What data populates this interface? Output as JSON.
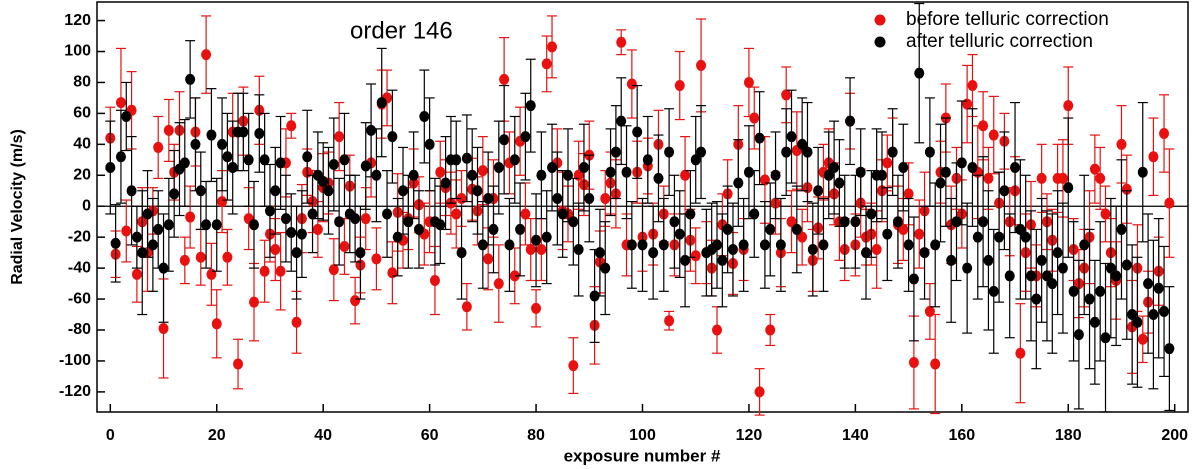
{
  "chart_data": {
    "type": "scatter",
    "annotation": "order 146",
    "x_label": "exposure number #",
    "y_label": "Radial Velocity (m/s)",
    "xlim": [
      -2.5,
      202.5
    ],
    "ylim": [
      -133,
      132
    ],
    "xticks": [
      0,
      20,
      40,
      60,
      80,
      100,
      120,
      140,
      160,
      180,
      200
    ],
    "yticks": [
      -120,
      -100,
      -80,
      -60,
      -40,
      -20,
      0,
      20,
      40,
      60,
      80,
      100,
      120
    ],
    "legend": "top-right",
    "x": [
      0,
      1,
      2,
      3,
      4,
      5,
      6,
      7,
      8,
      9,
      10,
      11,
      12,
      13,
      14,
      15,
      16,
      17,
      18,
      19,
      20,
      21,
      22,
      23,
      24,
      25,
      26,
      27,
      28,
      29,
      30,
      31,
      32,
      33,
      34,
      35,
      36,
      37,
      38,
      39,
      40,
      41,
      42,
      43,
      44,
      45,
      46,
      47,
      48,
      49,
      50,
      51,
      52,
      53,
      54,
      55,
      56,
      57,
      58,
      59,
      60,
      61,
      62,
      63,
      64,
      65,
      66,
      67,
      68,
      69,
      70,
      71,
      72,
      73,
      74,
      75,
      76,
      77,
      78,
      79,
      80,
      81,
      82,
      83,
      84,
      85,
      86,
      87,
      88,
      89,
      90,
      91,
      92,
      93,
      94,
      95,
      96,
      97,
      98,
      99,
      100,
      101,
      102,
      103,
      104,
      105,
      106,
      107,
      108,
      109,
      110,
      111,
      112,
      113,
      114,
      115,
      116,
      117,
      118,
      119,
      120,
      121,
      122,
      123,
      124,
      125,
      126,
      127,
      128,
      129,
      130,
      131,
      132,
      133,
      134,
      135,
      136,
      137,
      138,
      139,
      140,
      141,
      142,
      143,
      144,
      145,
      146,
      147,
      148,
      149,
      150,
      151,
      152,
      153,
      154,
      155,
      156,
      157,
      158,
      159,
      160,
      161,
      162,
      163,
      164,
      165,
      166,
      167,
      168,
      169,
      170,
      171,
      172,
      173,
      174,
      175,
      176,
      177,
      178,
      179,
      180,
      181,
      182,
      183,
      184,
      185,
      186,
      187,
      188,
      189,
      190,
      191,
      192,
      193,
      194,
      195,
      196,
      197,
      198,
      199
    ],
    "series": [
      {
        "name": "before telluric correction",
        "color": "#e8110f",
        "values": [
          44,
          -31,
          67,
          -16,
          62,
          -44,
          -10,
          -30,
          -3,
          38,
          -79,
          49,
          22,
          49,
          -35,
          -7,
          48,
          -33,
          98,
          -44,
          -76,
          3,
          -33,
          48,
          -102,
          55,
          -8,
          -62,
          62,
          -42,
          -18,
          -28,
          -42,
          28,
          52,
          -75,
          -8,
          22,
          3,
          -15,
          12,
          15,
          -41,
          45,
          -26,
          13,
          -61,
          -38,
          -8,
          28,
          -34,
          66,
          70,
          -43,
          -4,
          -22,
          -8,
          15,
          1,
          -18,
          -10,
          -48,
          22,
          12,
          2,
          -5,
          5,
          -65,
          11,
          -3,
          23,
          -34,
          5,
          -50,
          82,
          28,
          -45,
          42,
          -5,
          -28,
          -66,
          -28,
          92,
          103,
          28,
          -3,
          -5,
          -103,
          20,
          14,
          33,
          -77,
          -36,
          5,
          15,
          8,
          106,
          -25,
          79,
          22,
          -20,
          26,
          -18,
          40,
          -5,
          -74,
          -25,
          78,
          20,
          -22,
          -32,
          91,
          -30,
          -40,
          -80,
          -12,
          8,
          -37,
          40,
          -28,
          80,
          57,
          -120,
          17,
          -80,
          2,
          -30,
          72,
          -10,
          36,
          -20,
          12,
          -35,
          -14,
          22,
          28,
          8,
          -10,
          -28,
          55,
          -25,
          2,
          -20,
          -18,
          -28,
          10,
          28,
          35,
          -12,
          -15,
          8,
          -101,
          -18,
          -3,
          -68,
          -102,
          22,
          57,
          -12,
          18,
          -5,
          66,
          78,
          22,
          52,
          18,
          46,
          2,
          42,
          -10,
          10,
          -95,
          -30,
          -12,
          -45,
          18,
          -10,
          -22,
          18,
          18,
          65,
          -28,
          -50,
          -40,
          -20,
          24,
          18,
          -5,
          -30,
          -48,
          40,
          11,
          -78,
          -40,
          -86,
          -62,
          32,
          -42,
          47,
          2
        ],
        "errors": [
          20,
          15,
          35,
          20,
          25,
          18,
          22,
          25,
          15,
          20,
          32,
          20,
          18,
          25,
          15,
          20,
          22,
          18,
          25,
          20,
          22,
          20,
          18,
          25,
          16,
          22,
          20,
          25,
          22,
          20,
          18,
          20,
          25,
          22,
          8,
          20,
          22,
          15,
          20,
          18,
          22,
          20,
          20,
          22,
          18,
          20,
          15,
          18,
          20,
          22,
          20,
          22,
          18,
          20,
          25,
          18,
          20,
          22,
          18,
          20,
          20,
          22,
          20,
          18,
          20,
          22,
          18,
          15,
          20,
          22,
          22,
          20,
          25,
          25,
          27,
          20,
          18,
          22,
          20,
          20,
          12,
          20,
          18,
          20,
          22,
          25,
          18,
          18,
          22,
          20,
          22,
          25,
          20,
          18,
          20,
          22,
          8,
          20,
          22,
          20,
          22,
          18,
          20,
          22,
          18,
          6,
          20,
          22,
          25,
          20,
          18,
          30,
          20,
          18,
          15,
          20,
          22,
          20,
          25,
          20,
          22,
          20,
          15,
          28,
          10,
          20,
          22,
          18,
          20,
          25,
          18,
          22,
          20,
          20,
          18,
          22,
          20,
          25,
          20,
          18,
          20,
          22,
          18,
          20,
          25,
          20,
          18,
          22,
          25,
          20,
          20,
          30,
          22,
          25,
          18,
          32,
          20,
          22,
          25,
          20,
          22,
          25,
          20,
          30,
          22,
          20,
          25,
          20,
          18,
          22,
          22,
          32,
          25,
          28,
          20,
          22,
          18,
          20,
          22,
          25,
          25,
          20,
          22,
          25,
          30,
          22,
          20,
          18,
          22,
          25,
          25,
          22,
          30,
          28,
          15,
          20,
          25,
          22,
          25,
          35
        ]
      },
      {
        "name": "after telluric correction",
        "color": "#000000",
        "values": [
          25,
          -24,
          32,
          58,
          10,
          -20,
          -30,
          -5,
          -25,
          -15,
          -40,
          -12,
          8,
          24,
          28,
          82,
          40,
          10,
          -12,
          46,
          -12,
          40,
          32,
          25,
          48,
          48,
          30,
          -12,
          47,
          30,
          -3,
          10,
          28,
          -8,
          -17,
          -30,
          -18,
          32,
          -5,
          20,
          16,
          10,
          27,
          -10,
          30,
          -5,
          -8,
          -30,
          26,
          49,
          20,
          67,
          -5,
          45,
          -20,
          10,
          -10,
          20,
          -15,
          58,
          40,
          -10,
          -12,
          15,
          30,
          30,
          -30,
          31,
          20,
          10,
          -25,
          5,
          -15,
          25,
          43,
          -25,
          30,
          -15,
          45,
          65,
          -22,
          20,
          -20,
          25,
          5,
          -5,
          20,
          -10,
          -28,
          25,
          5,
          -58,
          -30,
          -40,
          22,
          35,
          55,
          22,
          -25,
          48,
          -25,
          30,
          -30,
          18,
          -25,
          35,
          -10,
          -18,
          -35,
          -5,
          30,
          35,
          -30,
          -28,
          -25,
          -35,
          -15,
          -28,
          15,
          -25,
          22,
          -5,
          44,
          -25,
          -15,
          20,
          -25,
          35,
          45,
          -15,
          40,
          35,
          -28,
          10,
          -25,
          20,
          25,
          15,
          -10,
          55,
          -10,
          22,
          -30,
          -5,
          20,
          20,
          -18,
          35,
          -10,
          25,
          -25,
          -47,
          86,
          -30,
          35,
          -25,
          15,
          22,
          -35,
          -10,
          28,
          -40,
          25,
          -20,
          -10,
          -35,
          -55,
          -20,
          10,
          -45,
          25,
          -15,
          -20,
          -45,
          -60,
          -35,
          -45,
          -50,
          -30,
          -40,
          12,
          -55,
          -83,
          -25,
          -60,
          -75,
          -55,
          -85,
          -40,
          -45,
          -15,
          -38,
          -70,
          -75,
          22,
          -50,
          -70,
          -53,
          -68,
          -92
        ],
        "errors": [
          30,
          25,
          30,
          22,
          35,
          20,
          40,
          28,
          30,
          25,
          35,
          30,
          28,
          30,
          28,
          25,
          30,
          25,
          28,
          30,
          30,
          30,
          28,
          30,
          25,
          25,
          30,
          28,
          25,
          30,
          30,
          28,
          30,
          28,
          25,
          30,
          28,
          30,
          25,
          28,
          25,
          28,
          30,
          28,
          30,
          25,
          28,
          30,
          28,
          30,
          30,
          35,
          28,
          30,
          25,
          28,
          30,
          28,
          25,
          30,
          30,
          28,
          25,
          30,
          28,
          25,
          30,
          28,
          30,
          28,
          28,
          30,
          28,
          30,
          35,
          30,
          28,
          30,
          28,
          30,
          30,
          28,
          30,
          28,
          30,
          28,
          30,
          28,
          30,
          28,
          28,
          30,
          28,
          30,
          28,
          30,
          28,
          30,
          28,
          30,
          30,
          28,
          30,
          28,
          30,
          28,
          30,
          28,
          30,
          28,
          28,
          30,
          28,
          30,
          28,
          30,
          28,
          30,
          28,
          30,
          30,
          28,
          30,
          28,
          30,
          28,
          30,
          28,
          30,
          28,
          30,
          32,
          30,
          28,
          30,
          28,
          30,
          28,
          30,
          28,
          30,
          28,
          30,
          28,
          30,
          28,
          30,
          28,
          30,
          28,
          30,
          40,
          45,
          30,
          35,
          40,
          38,
          35,
          40,
          38,
          40,
          42,
          38,
          40,
          42,
          45,
          40,
          42,
          38,
          40,
          42,
          45,
          40,
          42,
          45,
          40,
          42,
          45,
          40,
          42,
          45,
          45,
          48,
          45,
          45,
          40,
          45,
          48,
          45,
          45,
          45,
          48,
          45,
          42,
          45,
          45,
          48,
          45,
          42,
          40
        ]
      }
    ]
  }
}
